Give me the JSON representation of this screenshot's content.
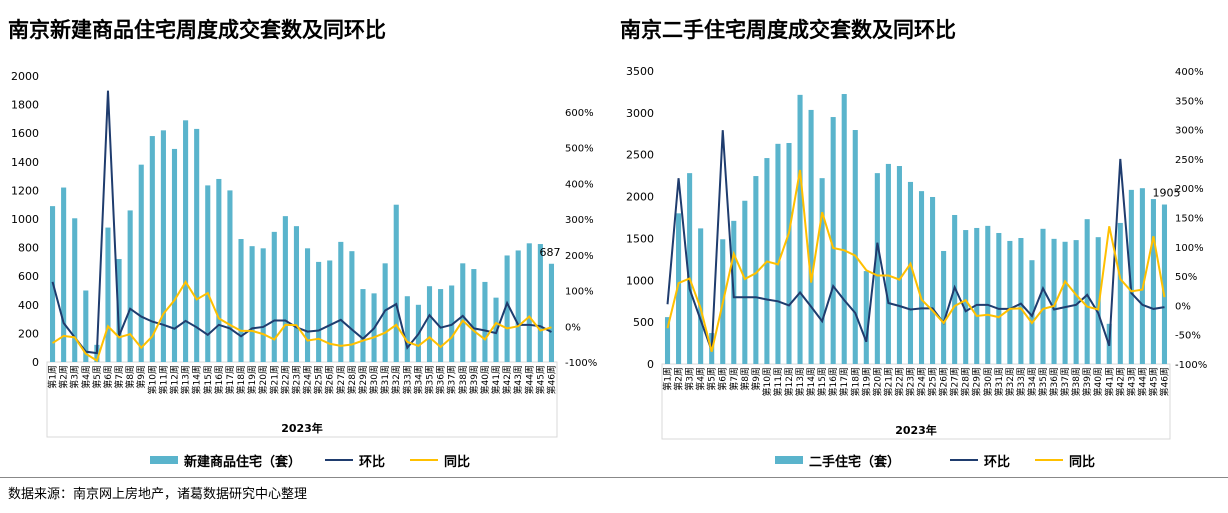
{
  "source": "数据来源：南京网上房地产，诸葛数据研究中心整理",
  "colors": {
    "bar": "#5ab4cc",
    "huanbi": "#1f3c6e",
    "tongbi": "#ffc000"
  },
  "chart_data": [
    {
      "type": "bar+line",
      "title": "南京新建商品住宅周度成交套数及同环比",
      "xlabel": "2023年",
      "ylim": [
        0,
        2000
      ],
      "yticks": [
        0,
        200,
        400,
        600,
        800,
        1000,
        1200,
        1400,
        1600,
        1800,
        2000
      ],
      "y2lim": [
        -100,
        700
      ],
      "y2ticks": [
        "-100%",
        "0%",
        "100%",
        "200%",
        "300%",
        "400%",
        "500%",
        "600%"
      ],
      "legend": [
        "新建商品住宅（套）",
        "环比",
        "同比"
      ],
      "legend_position": "bottom",
      "last_label": "687",
      "categories": [
        "第1周",
        "第2周",
        "第3周",
        "第4周",
        "第5周",
        "第6周",
        "第7周",
        "第8周",
        "第9周",
        "第10周",
        "第11周",
        "第12周",
        "第13周",
        "第14周",
        "第15周",
        "第16周",
        "第17周",
        "第18周",
        "第19周",
        "第20周",
        "第21周",
        "第22周",
        "第23周",
        "第24周",
        "第25周",
        "第26周",
        "第27周",
        "第28周",
        "第29周",
        "第30周",
        "第31周",
        "第32周",
        "第33周",
        "第34周",
        "第35周",
        "第36周",
        "第37周",
        "第38周",
        "第39周",
        "第40周",
        "第41周",
        "第42周",
        "第43周",
        "第44周",
        "第45周",
        "第46周"
      ],
      "bars": [
        1090,
        1220,
        1005,
        500,
        120,
        940,
        720,
        1060,
        1380,
        1580,
        1620,
        1490,
        1690,
        1630,
        1235,
        1280,
        1200,
        860,
        810,
        795,
        910,
        1020,
        950,
        795,
        700,
        710,
        840,
        775,
        510,
        480,
        690,
        1100,
        460,
        400,
        530,
        510,
        535,
        690,
        650,
        560,
        450,
        745,
        780,
        830,
        825,
        687
      ],
      "huanbi": [
        124,
        9,
        -31,
        -71,
        -75,
        659,
        -27,
        49,
        27,
        13,
        4,
        -7,
        15,
        -3,
        -24,
        4,
        -6,
        -28,
        -6,
        -2,
        16,
        16,
        -3,
        -15,
        -12,
        3,
        18,
        -9,
        -35,
        -6,
        44,
        62,
        -60,
        -22,
        31,
        -4,
        4,
        29,
        -6,
        -12,
        -19,
        65,
        4,
        4,
        0,
        -16
      ],
      "tongbi": [
        -47,
        -27,
        -31,
        -77,
        -96,
        0,
        -31,
        -22,
        -60,
        -28,
        35,
        73,
        124,
        75,
        93,
        22,
        4,
        -13,
        -13,
        -22,
        -37,
        4,
        3,
        -40,
        -35,
        -49,
        -55,
        -51,
        -40,
        -31,
        -18,
        4,
        -44,
        -55,
        -31,
        -58,
        -31,
        16,
        -13,
        -37,
        9,
        -6,
        0,
        27,
        -12,
        -3
      ]
    },
    {
      "type": "bar+line",
      "title": "南京二手住宅周度成交套数及同环比",
      "xlabel": "2023年",
      "ylim": [
        0,
        3500
      ],
      "yticks": [
        0,
        500,
        1000,
        1500,
        2000,
        2500,
        3000,
        3500
      ],
      "y2lim": [
        -100,
        400
      ],
      "y2ticks": [
        "-100%",
        "-50%",
        "0%",
        "50%",
        "100%",
        "150%",
        "200%",
        "250%",
        "300%",
        "350%",
        "400%"
      ],
      "legend": [
        "二手住宅（套）",
        "环比",
        "同比"
      ],
      "legend_position": "bottom",
      "last_label": "1905",
      "categories": [
        "第1周",
        "第2周",
        "第3周",
        "第4周",
        "第5周",
        "第6周",
        "第7周",
        "第8周",
        "第9周",
        "第10周",
        "第11周",
        "第12周",
        "第13周",
        "第14周",
        "第15周",
        "第16周",
        "第17周",
        "第18周",
        "第19周",
        "第20周",
        "第21周",
        "第22周",
        "第23周",
        "第24周",
        "第25周",
        "第26周",
        "第27周",
        "第28周",
        "第29周",
        "第30周",
        "第31周",
        "第32周",
        "第33周",
        "第34周",
        "第35周",
        "第36周",
        "第37周",
        "第38周",
        "第39周",
        "第40周",
        "第41周",
        "第42周",
        "第43周",
        "第44周",
        "第45周",
        "第46周"
      ],
      "bars": [
        560,
        1800,
        2280,
        1620,
        370,
        1490,
        1710,
        1950,
        2245,
        2460,
        2630,
        2640,
        3215,
        3035,
        2220,
        2950,
        3225,
        2795,
        1110,
        2280,
        2390,
        2365,
        2175,
        2065,
        1995,
        1350,
        1780,
        1600,
        1625,
        1650,
        1565,
        1470,
        1505,
        1240,
        1615,
        1495,
        1460,
        1480,
        1730,
        1515,
        480,
        1685,
        2080,
        2100,
        1970,
        1905
      ],
      "huanbi": [
        2,
        217,
        28,
        -25,
        -77,
        299,
        14,
        14,
        14,
        10,
        7,
        0,
        22,
        -2,
        -27,
        33,
        9,
        -13,
        -62,
        107,
        4,
        -1,
        -7,
        -5,
        -5,
        -30,
        31,
        -10,
        1,
        1,
        -6,
        -6,
        3,
        -18,
        29,
        -7,
        -3,
        1,
        18,
        -13,
        -69,
        250,
        21,
        1,
        -6,
        -3
      ],
      "tongbi": [
        -39,
        38,
        46,
        -5,
        -79,
        4,
        88,
        45,
        55,
        75,
        70,
        124,
        231,
        39,
        159,
        98,
        94,
        85,
        60,
        51,
        51,
        44,
        71,
        10,
        -9,
        -30,
        -1,
        9,
        -18,
        -16,
        -20,
        -6,
        -5,
        -30,
        -6,
        -1,
        41,
        18,
        -2,
        -7,
        135,
        45,
        24,
        27,
        118,
        14
      ]
    }
  ]
}
